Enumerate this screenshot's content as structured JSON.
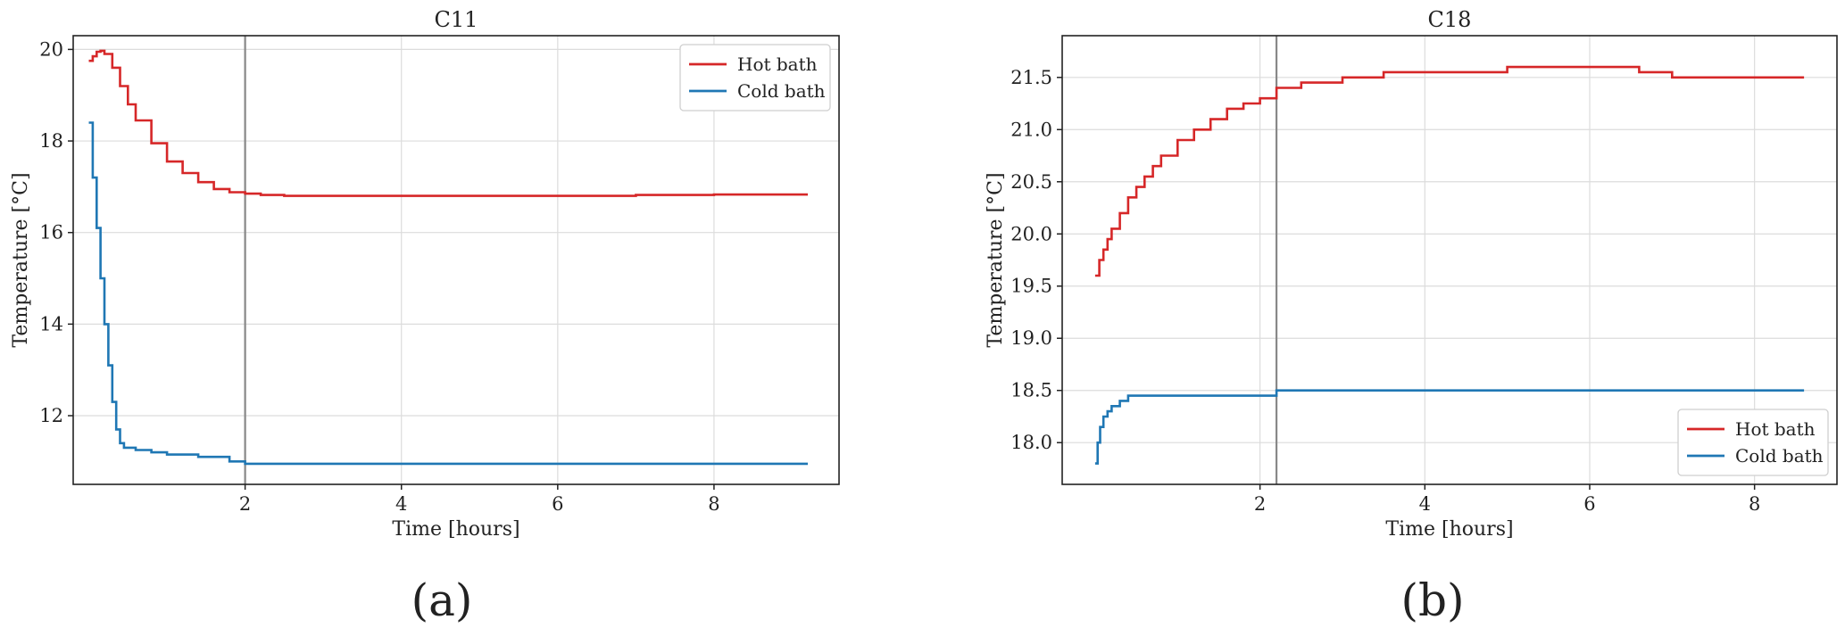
{
  "chart_data": [
    {
      "type": "line",
      "title": "C11",
      "panel_label": "(a)",
      "xlabel": "Time [hours]",
      "ylabel": "Temperature [°C]",
      "xlim": [
        -0.2,
        9.6
      ],
      "ylim": [
        10.5,
        20.3
      ],
      "xticks": [
        2,
        4,
        6,
        8
      ],
      "xtick_labels": [
        "2",
        "4",
        "6",
        "8"
      ],
      "yticks": [
        12,
        14,
        16,
        18,
        20
      ],
      "ytick_labels": [
        "12",
        "14",
        "16",
        "18",
        "20"
      ],
      "vline_x": 2.0,
      "grid": true,
      "legend_position": "upper right",
      "series": [
        {
          "name": "Hot bath",
          "color": "#d62728",
          "x": [
            0.0,
            0.05,
            0.1,
            0.15,
            0.2,
            0.3,
            0.4,
            0.5,
            0.6,
            0.8,
            1.0,
            1.2,
            1.4,
            1.6,
            1.8,
            2.0,
            2.2,
            2.5,
            3.0,
            4.0,
            5.0,
            6.0,
            7.0,
            8.0,
            9.2
          ],
          "y": [
            19.75,
            19.85,
            19.95,
            19.97,
            19.9,
            19.6,
            19.2,
            18.8,
            18.45,
            17.95,
            17.55,
            17.3,
            17.1,
            16.95,
            16.88,
            16.85,
            16.82,
            16.8,
            16.8,
            16.8,
            16.8,
            16.8,
            16.82,
            16.83,
            16.83
          ]
        },
        {
          "name": "Cold bath",
          "color": "#1f77b4",
          "x": [
            0.0,
            0.05,
            0.1,
            0.15,
            0.2,
            0.25,
            0.3,
            0.35,
            0.4,
            0.45,
            0.5,
            0.6,
            0.8,
            1.0,
            1.4,
            1.8,
            2.0,
            3.0,
            5.0,
            7.0,
            9.2
          ],
          "y": [
            18.4,
            17.2,
            16.1,
            15.0,
            14.0,
            13.1,
            12.3,
            11.7,
            11.4,
            11.3,
            11.3,
            11.25,
            11.2,
            11.15,
            11.1,
            11.0,
            10.95,
            10.95,
            10.95,
            10.95,
            10.95
          ]
        }
      ]
    },
    {
      "type": "line",
      "title": "C18",
      "panel_label": "(b)",
      "xlabel": "Time [hours]",
      "ylabel": "Temperature [°C]",
      "xlim": [
        -0.4,
        9.0
      ],
      "ylim": [
        17.6,
        21.9
      ],
      "xticks": [
        2,
        4,
        6,
        8
      ],
      "xtick_labels": [
        "2",
        "4",
        "6",
        "8"
      ],
      "yticks": [
        18.0,
        18.5,
        19.0,
        19.5,
        20.0,
        20.5,
        21.0,
        21.5
      ],
      "ytick_labels": [
        "18.0",
        "18.5",
        "19.0",
        "19.5",
        "20.0",
        "20.5",
        "21.0",
        "21.5"
      ],
      "vline_x": 2.2,
      "grid": true,
      "legend_position": "lower right",
      "series": [
        {
          "name": "Hot bath",
          "color": "#d62728",
          "x": [
            0.0,
            0.05,
            0.1,
            0.15,
            0.2,
            0.3,
            0.4,
            0.5,
            0.6,
            0.7,
            0.8,
            1.0,
            1.2,
            1.4,
            1.6,
            1.8,
            2.0,
            2.2,
            2.5,
            3.0,
            3.5,
            4.0,
            5.0,
            6.0,
            6.6,
            7.0,
            8.0,
            8.6
          ],
          "y": [
            19.6,
            19.75,
            19.85,
            19.95,
            20.05,
            20.2,
            20.35,
            20.45,
            20.55,
            20.65,
            20.75,
            20.9,
            21.0,
            21.1,
            21.2,
            21.25,
            21.3,
            21.4,
            21.45,
            21.5,
            21.55,
            21.55,
            21.6,
            21.6,
            21.55,
            21.5,
            21.5,
            21.5
          ]
        },
        {
          "name": "Cold bath",
          "color": "#1f77b4",
          "x": [
            0.0,
            0.03,
            0.06,
            0.1,
            0.15,
            0.2,
            0.3,
            0.4,
            1.0,
            2.0,
            2.2,
            4.0,
            6.0,
            8.0,
            8.6
          ],
          "y": [
            17.8,
            18.0,
            18.15,
            18.25,
            18.3,
            18.35,
            18.4,
            18.45,
            18.45,
            18.45,
            18.5,
            18.5,
            18.5,
            18.5,
            18.5
          ]
        }
      ]
    }
  ]
}
